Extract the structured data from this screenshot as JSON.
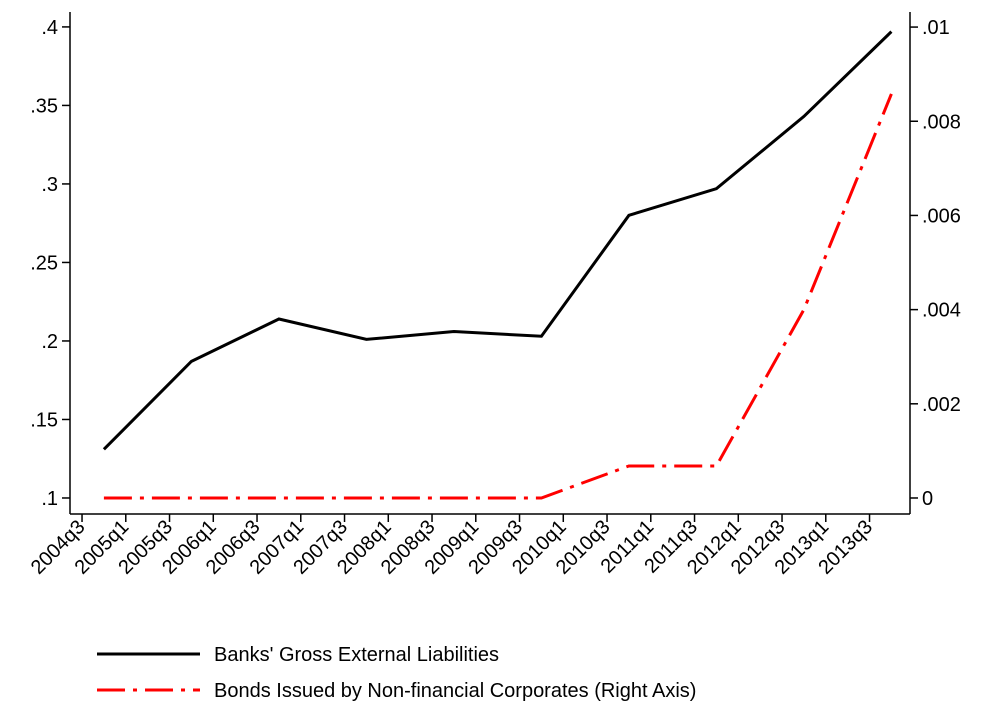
{
  "chart_data": {
    "type": "line",
    "x": [
      "2004q4",
      "2005q4",
      "2006q4",
      "2007q4",
      "2008q4",
      "2009q4",
      "2010q4",
      "2011q4",
      "2012q4",
      "2013q4"
    ],
    "xticks": [
      "2004q3",
      "2005q1",
      "2005q3",
      "2006q1",
      "2006q3",
      "2007q1",
      "2007q3",
      "2008q1",
      "2008q3",
      "2009q1",
      "2009q3",
      "2010q1",
      "2010q3",
      "2011q1",
      "2011q3",
      "2012q1",
      "2012q3",
      "2013q1",
      "2013q3"
    ],
    "series": [
      {
        "name": "Banks' Gross External Liabilities",
        "color": "#000000",
        "values": [
          0.131,
          0.187,
          0.214,
          0.201,
          0.206,
          0.203,
          0.28,
          0.297,
          0.343,
          0.397
        ]
      },
      {
        "name": "Bonds Issued by Non-financial Corporates (Right Axis)",
        "color": "#ff0000",
        "axis": "y2",
        "values": [
          0,
          0,
          0,
          0,
          0,
          0,
          0.00068,
          0.00068,
          0.004,
          0.00858
        ]
      }
    ],
    "ylim": [
      0.0898,
      0.4095
    ],
    "yticks": [
      {
        "value": 0.1,
        "label": ".1"
      },
      {
        "value": 0.15,
        "label": ".15"
      },
      {
        "value": 0.2,
        "label": ".2"
      },
      {
        "value": 0.25,
        "label": ".25"
      },
      {
        "value": 0.3,
        "label": ".3"
      },
      {
        "value": 0.35,
        "label": ".35"
      },
      {
        "value": 0.4,
        "label": ".4"
      }
    ],
    "y2lim": [
      -0.00034,
      0.01032
    ],
    "y2ticks": [
      0,
      {
        "value": 0.002,
        "label": ".002"
      },
      {
        "value": 0.004,
        "label": ".004"
      },
      {
        "value": 0.006,
        "label": ".006"
      },
      {
        "value": 0.008,
        "label": ".008"
      },
      {
        "value": 0.01,
        "label": ".01"
      }
    ],
    "grid": false
  }
}
